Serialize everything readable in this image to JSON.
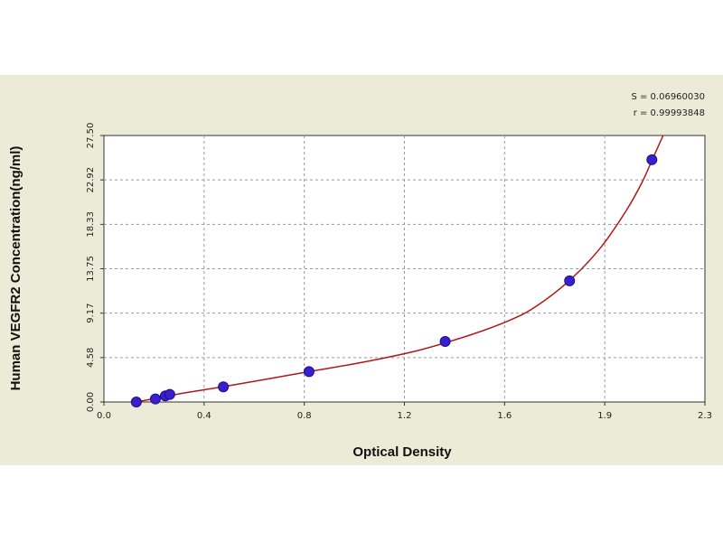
{
  "chart_data": {
    "type": "scatter",
    "title": "",
    "xlabel": "Optical Density",
    "ylabel": "Human VEGFR2 Concentration(ng/ml)",
    "xlim": [
      0.0,
      2.3
    ],
    "ylim": [
      0.0,
      27.5
    ],
    "x_ticks": [
      "0.0",
      "0.4",
      "0.8",
      "1.2",
      "1.6",
      "1.9",
      "2.3"
    ],
    "y_ticks": [
      "0.00",
      "4.58",
      "9.17",
      "13.75",
      "18.33",
      "22.92",
      "27.50"
    ],
    "grid": true,
    "stats": {
      "s_line": "S = 0.06960030",
      "r_line": "r = 0.99993848"
    },
    "colors": {
      "panel": "#ecebd7",
      "curve": "#b01818",
      "point": "#3a1fd0",
      "grid": "#9a9a9a"
    },
    "series": [
      {
        "points": [
          {
            "x": 0.124,
            "y": 0.0
          },
          {
            "x": 0.197,
            "y": 0.31
          },
          {
            "x": 0.235,
            "y": 0.63
          },
          {
            "x": 0.252,
            "y": 0.78
          },
          {
            "x": 0.457,
            "y": 1.56
          },
          {
            "x": 0.785,
            "y": 3.13
          },
          {
            "x": 1.306,
            "y": 6.25
          },
          {
            "x": 1.782,
            "y": 12.5
          },
          {
            "x": 2.097,
            "y": 25.0
          }
        ]
      }
    ],
    "curve_samples": [
      {
        "x": 0.124,
        "y": 0.0
      },
      {
        "x": 0.2,
        "y": 0.38
      },
      {
        "x": 0.3,
        "y": 0.9
      },
      {
        "x": 0.45,
        "y": 1.55
      },
      {
        "x": 0.6,
        "y": 2.25
      },
      {
        "x": 0.8,
        "y": 3.2
      },
      {
        "x": 1.0,
        "y": 4.15
      },
      {
        "x": 1.2,
        "y": 5.3
      },
      {
        "x": 1.4,
        "y": 6.9
      },
      {
        "x": 1.55,
        "y": 8.4
      },
      {
        "x": 1.65,
        "y": 9.8
      },
      {
        "x": 1.78,
        "y": 12.5
      },
      {
        "x": 1.9,
        "y": 15.9
      },
      {
        "x": 2.0,
        "y": 19.8
      },
      {
        "x": 2.06,
        "y": 22.7
      },
      {
        "x": 2.1,
        "y": 25.1
      },
      {
        "x": 2.14,
        "y": 27.5
      }
    ]
  }
}
